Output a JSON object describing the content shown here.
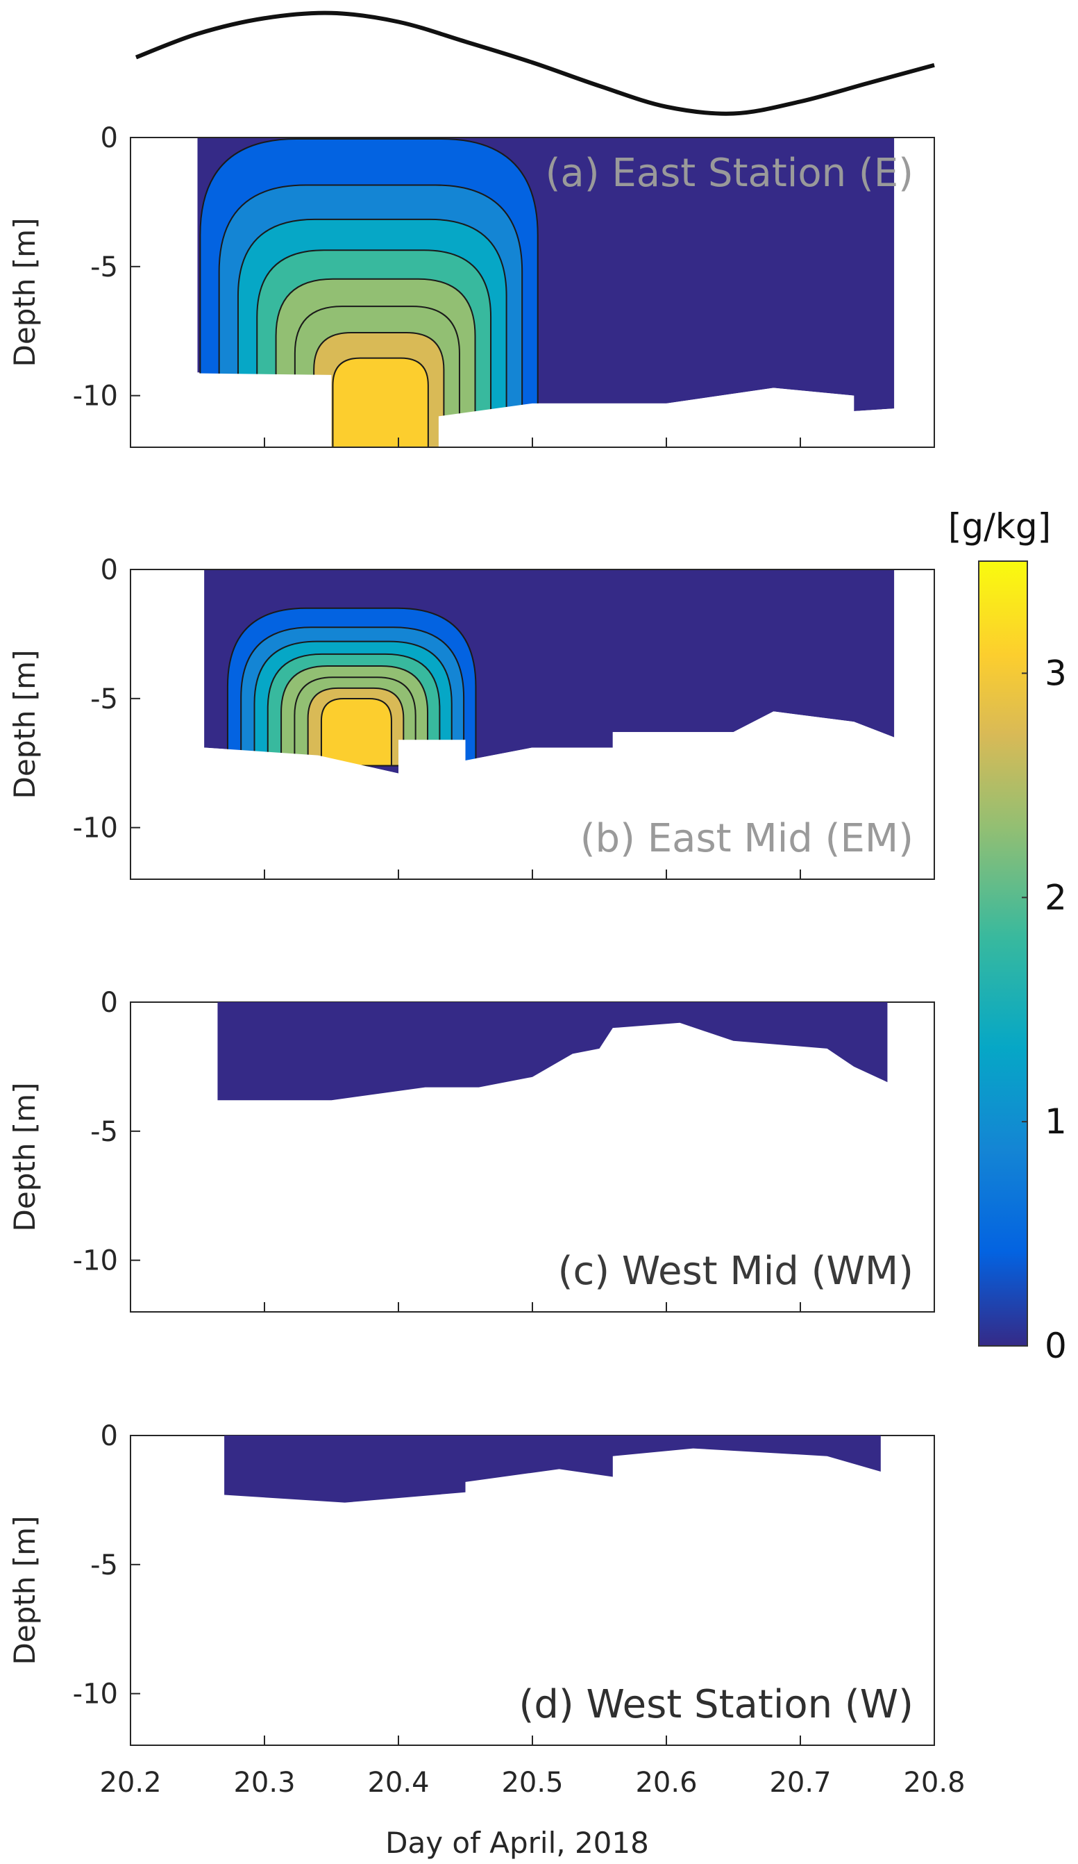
{
  "chart_data": {
    "type": "contour",
    "xlabel": "Day of April, 2018",
    "ylabel": "Depth [m]",
    "xlim": [
      20.2,
      20.8
    ],
    "ylim": [
      -12,
      0
    ],
    "xticks": [
      "20.2",
      "20.3",
      "20.4",
      "20.5",
      "20.6",
      "20.7",
      "20.8"
    ],
    "yticks": [
      "0",
      "-5",
      "-10"
    ],
    "colorbar": {
      "label": "[g/kg]",
      "range": [
        0,
        3.5
      ],
      "ticks": [
        "0",
        "1",
        "2",
        "3"
      ],
      "colormap": [
        "#352a87",
        "#0363e1",
        "#1485d4",
        "#06a7c6",
        "#38b99e",
        "#92bf73",
        "#d9ba56",
        "#fcce2e",
        "#f9fb0e"
      ]
    },
    "tide_curve": {
      "description_free": true,
      "x": [
        20.2,
        20.25,
        20.3,
        20.35,
        20.4,
        20.45,
        20.5,
        20.55,
        20.6,
        20.65,
        20.7,
        20.75,
        20.8
      ],
      "y": [
        0.1,
        0.55,
        0.85,
        0.95,
        0.78,
        0.4,
        0.0,
        -0.45,
        -0.85,
        -0.98,
        -0.75,
        -0.4,
        -0.05
      ]
    },
    "panels": [
      {
        "title": "(a) East Station (E)",
        "title_color": "#9a9a9a",
        "x_start": 20.25,
        "x_end": 20.77,
        "bottom_depth": [
          [
            20.25,
            -9.1
          ],
          [
            20.35,
            -9.2
          ],
          [
            20.35,
            -12
          ],
          [
            20.43,
            -12
          ],
          [
            20.43,
            -10.8
          ],
          [
            20.5,
            -10.3
          ],
          [
            20.6,
            -10.3
          ],
          [
            20.68,
            -9.7
          ],
          [
            20.74,
            -10.0
          ],
          [
            20.74,
            -10.6
          ],
          [
            20.77,
            -10.5
          ]
        ],
        "max_value": 3.3,
        "max_location": [
          20.39,
          -10
        ]
      },
      {
        "title": "(b) East Mid (EM)",
        "title_color": "#9a9a9a",
        "x_start": 20.255,
        "x_end": 20.77,
        "bottom_depth": [
          [
            20.255,
            -6.9
          ],
          [
            20.34,
            -7.2
          ],
          [
            20.4,
            -7.9
          ],
          [
            20.4,
            -6.6
          ],
          [
            20.45,
            -6.6
          ],
          [
            20.45,
            -7.4
          ],
          [
            20.5,
            -6.9
          ],
          [
            20.56,
            -6.9
          ],
          [
            20.56,
            -6.3
          ],
          [
            20.65,
            -6.3
          ],
          [
            20.68,
            -5.5
          ],
          [
            20.74,
            -5.9
          ],
          [
            20.77,
            -6.5
          ]
        ],
        "max_value": 3.4,
        "max_location": [
          20.37,
          -6.7
        ]
      },
      {
        "title": "(c) West Mid (WM)",
        "title_color": "#3a3a3a",
        "x_start": 20.265,
        "x_end": 20.765,
        "bottom_depth": [
          [
            20.265,
            -3.8
          ],
          [
            20.35,
            -3.8
          ],
          [
            20.42,
            -3.3
          ],
          [
            20.46,
            -3.3
          ],
          [
            20.5,
            -2.9
          ],
          [
            20.53,
            -2.0
          ],
          [
            20.55,
            -1.8
          ],
          [
            20.56,
            -1.0
          ],
          [
            20.61,
            -0.8
          ],
          [
            20.65,
            -1.5
          ],
          [
            20.72,
            -1.8
          ],
          [
            20.74,
            -2.5
          ],
          [
            20.765,
            -3.1
          ]
        ],
        "max_value": 0
      },
      {
        "title": "(d) West Station (W)",
        "title_color": "#2f2f2f",
        "x_start": 20.27,
        "x_end": 20.76,
        "bottom_depth": [
          [
            20.27,
            -2.3
          ],
          [
            20.36,
            -2.6
          ],
          [
            20.45,
            -2.2
          ],
          [
            20.45,
            -1.8
          ],
          [
            20.52,
            -1.3
          ],
          [
            20.56,
            -1.6
          ],
          [
            20.56,
            -0.8
          ],
          [
            20.62,
            -0.5
          ],
          [
            20.72,
            -0.8
          ],
          [
            20.76,
            -1.4
          ]
        ],
        "max_value": 0
      }
    ]
  }
}
